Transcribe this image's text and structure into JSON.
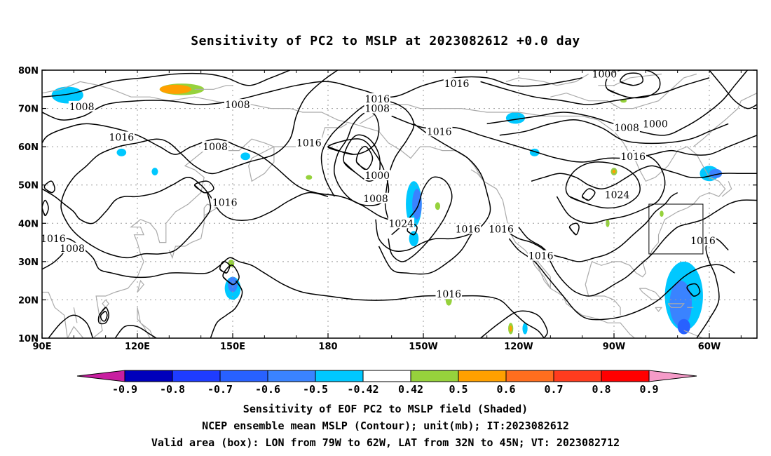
{
  "title": "Sensitivity of PC2 to MSLP at 2023082612 +0.0 day",
  "lat_labels": [
    "80N",
    "70N",
    "60N",
    "50N",
    "40N",
    "30N",
    "20N",
    "10N"
  ],
  "lon_labels": [
    "90E",
    "120E",
    "150E",
    "180",
    "150W",
    "120W",
    "90W",
    "60W"
  ],
  "contour_labels": [
    {
      "text": "1016",
      "lon": 220.5,
      "lat": 76.5
    },
    {
      "text": "1000",
      "lon": 267.0,
      "lat": 79.0
    },
    {
      "text": "1008",
      "lon": 102.5,
      "lat": 70.5
    },
    {
      "text": "1008",
      "lon": 151.5,
      "lat": 71.0
    },
    {
      "text": "1016",
      "lon": 195.5,
      "lat": 72.5
    },
    {
      "text": "1008",
      "lon": 195.5,
      "lat": 70.0
    },
    {
      "text": "1016",
      "lon": 115.0,
      "lat": 62.5
    },
    {
      "text": "1008",
      "lon": 144.5,
      "lat": 60.0
    },
    {
      "text": "1016",
      "lon": 174.0,
      "lat": 61.0
    },
    {
      "text": "1016",
      "lon": 215.0,
      "lat": 64.0
    },
    {
      "text": "1008",
      "lon": 274.0,
      "lat": 65.0
    },
    {
      "text": "1000",
      "lon": 283.0,
      "lat": 66.0
    },
    {
      "text": "1016",
      "lon": 276.0,
      "lat": 57.5
    },
    {
      "text": "1000",
      "lon": 195.5,
      "lat": 52.5
    },
    {
      "text": "1008",
      "lon": 195.0,
      "lat": 46.5
    },
    {
      "text": "1016",
      "lon": 147.5,
      "lat": 45.5
    },
    {
      "text": "1024",
      "lon": 271.0,
      "lat": 47.5
    },
    {
      "text": "1024",
      "lon": 203.0,
      "lat": 40.0
    },
    {
      "text": "1016",
      "lon": 224.0,
      "lat": 38.5
    },
    {
      "text": "1016",
      "lon": 234.5,
      "lat": 38.5
    },
    {
      "text": "1016",
      "lon": 298.0,
      "lat": 35.5
    },
    {
      "text": "1016",
      "lon": 93.5,
      "lat": 36.0
    },
    {
      "text": "1008",
      "lon": 99.5,
      "lat": 33.5
    },
    {
      "text": "1016",
      "lon": 247.0,
      "lat": 31.5
    },
    {
      "text": "1016",
      "lon": 218.0,
      "lat": 21.5
    }
  ],
  "colorbar": {
    "labels": [
      "-0.9",
      "-0.8",
      "-0.7",
      "-0.6",
      "-0.5",
      "-0.42",
      "0.42",
      "0.5",
      "0.6",
      "0.7",
      "0.8",
      "0.9"
    ],
    "colors": [
      "#0000bb",
      "#1e3cff",
      "#2861ff",
      "#3a83ff",
      "#00c8ff",
      "#ffffff",
      "#96d23c",
      "#ffa000",
      "#ff6e1e",
      "#ff3c1e",
      "#ff0000"
    ],
    "low_end_color": "#c81ea0",
    "high_end_color": "#f59bc8"
  },
  "captions": [
    "Sensitivity of EOF PC2 to MSLP field (Shaded)",
    "NCEP ensemble mean MSLP (Contour); unit(mb); IT:2023082612",
    "Valid area (box): LON from 79W to 62W, LAT from 32N to 45N; VT: 2023082712"
  ],
  "valid_box": {
    "lon_min": 281,
    "lon_max": 298,
    "lat_min": 32,
    "lat_max": 45
  },
  "shading": [
    {
      "lon": 98,
      "lat": 73.5,
      "rx": 3.5,
      "ry": 1.5,
      "color": "#3a83ff"
    },
    {
      "lon": 98,
      "lat": 73.5,
      "rx": 5,
      "ry": 2.2,
      "color": "#00c8ff"
    },
    {
      "lon": 134,
      "lat": 75,
      "rx": 7,
      "ry": 1.5,
      "color": "#96d23c"
    },
    {
      "lon": 132,
      "lat": 75,
      "rx": 5,
      "ry": 1.2,
      "color": "#ffa000"
    },
    {
      "lon": 115,
      "lat": 58.5,
      "rx": 1.5,
      "ry": 1,
      "color": "#00c8ff"
    },
    {
      "lon": 125.5,
      "lat": 53.5,
      "rx": 1,
      "ry": 1,
      "color": "#00c8ff"
    },
    {
      "lon": 154,
      "lat": 57.5,
      "rx": 1.5,
      "ry": 1,
      "color": "#00c8ff"
    },
    {
      "lon": 207,
      "lat": 45,
      "rx": 2.5,
      "ry": 6,
      "color": "#00c8ff"
    },
    {
      "lon": 208,
      "lat": 45,
      "rx": 1.5,
      "ry": 4,
      "color": "#3a83ff"
    },
    {
      "lon": 207,
      "lat": 36,
      "rx": 1.5,
      "ry": 2,
      "color": "#00c8ff"
    },
    {
      "lon": 214.5,
      "lat": 44.5,
      "rx": 0.8,
      "ry": 1,
      "color": "#96d23c"
    },
    {
      "lon": 174,
      "lat": 52,
      "rx": 1,
      "ry": 0.6,
      "color": "#96d23c"
    },
    {
      "lon": 150,
      "lat": 23,
      "rx": 2.5,
      "ry": 3,
      "color": "#00c8ff"
    },
    {
      "lon": 150,
      "lat": 24,
      "rx": 1.5,
      "ry": 2,
      "color": "#3a83ff"
    },
    {
      "lon": 149.5,
      "lat": 29.5,
      "rx": 1,
      "ry": 1,
      "color": "#96d23c"
    },
    {
      "lon": 218,
      "lat": 20,
      "rx": 1,
      "ry": 1.5,
      "color": "#96d23c"
    },
    {
      "lon": 237.5,
      "lat": 12.5,
      "rx": 0.8,
      "ry": 1.5,
      "color": "#96d23c"
    },
    {
      "lon": 237.5,
      "lat": 12.5,
      "rx": 0.4,
      "ry": 0.8,
      "color": "#ffa000"
    },
    {
      "lon": 242,
      "lat": 12.5,
      "rx": 0.8,
      "ry": 1.5,
      "color": "#00c8ff"
    },
    {
      "lon": 239,
      "lat": 67.5,
      "rx": 3,
      "ry": 1.5,
      "color": "#00c8ff"
    },
    {
      "lon": 245,
      "lat": 58.5,
      "rx": 1.5,
      "ry": 1,
      "color": "#00c8ff"
    },
    {
      "lon": 270,
      "lat": 53.5,
      "rx": 1,
      "ry": 1,
      "color": "#96d23c"
    },
    {
      "lon": 270,
      "lat": 53.5,
      "rx": 0.5,
      "ry": 0.5,
      "color": "#ffa000"
    },
    {
      "lon": 268,
      "lat": 40,
      "rx": 0.6,
      "ry": 1,
      "color": "#96d23c"
    },
    {
      "lon": 285,
      "lat": 42.5,
      "rx": 0.6,
      "ry": 0.8,
      "color": "#96d23c"
    },
    {
      "lon": 292,
      "lat": 21,
      "rx": 6,
      "ry": 9,
      "color": "#00c8ff"
    },
    {
      "lon": 291,
      "lat": 19,
      "rx": 3.5,
      "ry": 6,
      "color": "#3a83ff"
    },
    {
      "lon": 292,
      "lat": 13,
      "rx": 2,
      "ry": 2,
      "color": "#2861ff"
    },
    {
      "lon": 300,
      "lat": 53,
      "rx": 3,
      "ry": 2,
      "color": "#00c8ff"
    },
    {
      "lon": 302,
      "lat": 53,
      "rx": 2,
      "ry": 1.2,
      "color": "#3a83ff"
    },
    {
      "lon": 273,
      "lat": 72,
      "rx": 1,
      "ry": 0.5,
      "color": "#96d23c"
    }
  ]
}
